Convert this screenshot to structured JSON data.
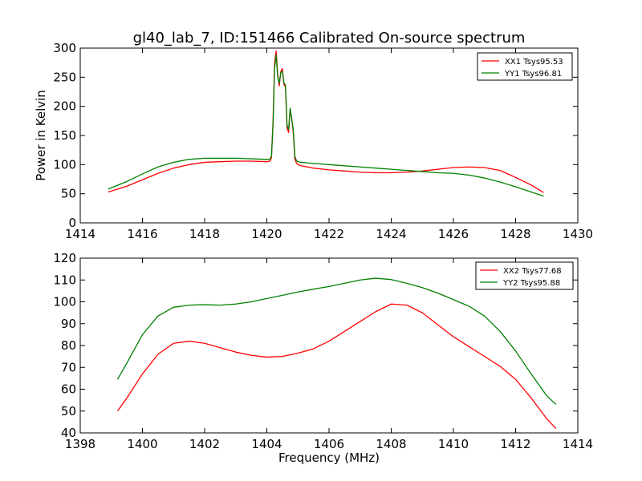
{
  "figure": {
    "title": "gl40_lab_7, ID:151466 Calibrated On-source spectrum"
  },
  "chart_data": [
    {
      "type": "line",
      "title": "gl40_lab_7, ID:151466 Calibrated On-source spectrum",
      "xlabel": "",
      "ylabel": "Power in Kelvin",
      "xlim": [
        1414,
        1430
      ],
      "ylim": [
        0,
        300
      ],
      "xticks": [
        "1414",
        "1416",
        "1418",
        "1420",
        "1422",
        "1424",
        "1426",
        "1428",
        "1430"
      ],
      "yticks": [
        "0",
        "50",
        "100",
        "150",
        "200",
        "250",
        "300"
      ],
      "legend_position": "top-right",
      "series": [
        {
          "name": "XX1 Tsys95.53",
          "color": "#ff0000",
          "x": [
            1414.9,
            1415.5,
            1416,
            1416.5,
            1417,
            1417.5,
            1418,
            1418.5,
            1419,
            1419.5,
            1420,
            1420.1,
            1420.15,
            1420.2,
            1420.25,
            1420.3,
            1420.35,
            1420.4,
            1420.45,
            1420.5,
            1420.55,
            1420.6,
            1420.65,
            1420.7,
            1420.75,
            1420.8,
            1420.85,
            1420.9,
            1420.95,
            1421.0,
            1421.1,
            1421.3,
            1421.5,
            1422,
            1422.5,
            1423,
            1423.5,
            1424,
            1424.5,
            1425,
            1425.5,
            1426,
            1426.5,
            1427,
            1427.5,
            1428,
            1428.5,
            1428.9
          ],
          "y": [
            53,
            63,
            74,
            85,
            94,
            100,
            104,
            105,
            106,
            106,
            105,
            106,
            112,
            175,
            275,
            295,
            255,
            235,
            260,
            265,
            238,
            233,
            163,
            155,
            193,
            180,
            155,
            110,
            103,
            100,
            98,
            96,
            94,
            91,
            89,
            87,
            86,
            86,
            87,
            89,
            92,
            95,
            96,
            95,
            90,
            78,
            65,
            52
          ]
        },
        {
          "name": "YY1 Tsys96.81",
          "color": "#008000",
          "x": [
            1414.9,
            1415.5,
            1416,
            1416.5,
            1417,
            1417.5,
            1418,
            1418.5,
            1419,
            1419.5,
            1420,
            1420.1,
            1420.15,
            1420.2,
            1420.25,
            1420.3,
            1420.35,
            1420.4,
            1420.45,
            1420.5,
            1420.55,
            1420.6,
            1420.65,
            1420.7,
            1420.75,
            1420.8,
            1420.85,
            1420.9,
            1420.95,
            1421.0,
            1421.1,
            1421.3,
            1421.5,
            1422,
            1422.5,
            1423,
            1423.5,
            1424,
            1424.5,
            1425,
            1425.5,
            1426,
            1426.5,
            1427,
            1427.5,
            1428,
            1428.5,
            1428.9
          ],
          "y": [
            58,
            71,
            84,
            96,
            104,
            109,
            111,
            111,
            111,
            110,
            109,
            109,
            115,
            170,
            265,
            288,
            250,
            240,
            258,
            260,
            240,
            237,
            168,
            160,
            197,
            178,
            160,
            115,
            107,
            105,
            104,
            103,
            102,
            100,
            98,
            96,
            94,
            92,
            90,
            88,
            86,
            85,
            82,
            77,
            70,
            62,
            53,
            46
          ]
        }
      ]
    },
    {
      "type": "line",
      "title": "",
      "xlabel": "Frequency (MHz)",
      "ylabel": "",
      "xlim": [
        1398,
        1414
      ],
      "ylim": [
        40,
        120
      ],
      "xticks": [
        "1398",
        "1400",
        "1402",
        "1404",
        "1406",
        "1408",
        "1410",
        "1412",
        "1414"
      ],
      "yticks": [
        "40",
        "50",
        "60",
        "70",
        "80",
        "90",
        "100",
        "110",
        "120"
      ],
      "legend_position": "top-right",
      "series": [
        {
          "name": "XX2 Tsys77.68",
          "color": "#ff0000",
          "x": [
            1399.2,
            1399.5,
            1400,
            1400.5,
            1401,
            1401.5,
            1402,
            1402.5,
            1403,
            1403.5,
            1404,
            1404.5,
            1405,
            1405.5,
            1406,
            1406.5,
            1407,
            1407.5,
            1408,
            1408.5,
            1409,
            1409.5,
            1410,
            1410.5,
            1411,
            1411.5,
            1412,
            1412.5,
            1413,
            1413.3
          ],
          "y": [
            50,
            56,
            67,
            76,
            81,
            82,
            81,
            79,
            77,
            75.5,
            74.7,
            75,
            76.5,
            78.5,
            82,
            86.5,
            91,
            95.5,
            99,
            98.5,
            95,
            89.5,
            84,
            79.5,
            75,
            70.5,
            64.5,
            56,
            46.5,
            42
          ]
        },
        {
          "name": "YY2 Tsys95.88",
          "color": "#008000",
          "x": [
            1399.2,
            1399.5,
            1400,
            1400.5,
            1401,
            1401.5,
            1402,
            1402.5,
            1403,
            1403.5,
            1404,
            1404.5,
            1405,
            1405.5,
            1406,
            1406.5,
            1407,
            1407.5,
            1408,
            1408.5,
            1409,
            1409.5,
            1410,
            1410.5,
            1411,
            1411.5,
            1412,
            1412.5,
            1413,
            1413.3
          ],
          "y": [
            64.5,
            72,
            85,
            93.5,
            97.5,
            98.5,
            98.7,
            98.5,
            99,
            100,
            101.5,
            103,
            104.5,
            105.8,
            107,
            108.5,
            110,
            110.8,
            110.2,
            108.5,
            106.5,
            104,
            101,
            98,
            93.5,
            86.5,
            77.5,
            67,
            57,
            53
          ]
        }
      ]
    }
  ]
}
